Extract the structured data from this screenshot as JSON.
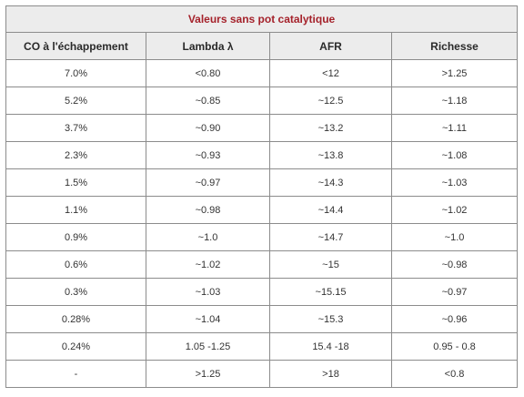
{
  "table": {
    "title": "Valeurs sans pot catalytique",
    "headers": [
      "CO à l'échappement",
      "Lambda λ",
      "AFR",
      "Richesse"
    ],
    "rows": [
      [
        "7.0%",
        "<0.80",
        "<12",
        ">1.25"
      ],
      [
        "5.2%",
        "~0.85",
        "~12.5",
        "~1.18"
      ],
      [
        "3.7%",
        "~0.90",
        "~13.2",
        "~1.11"
      ],
      [
        "2.3%",
        "~0.93",
        "~13.8",
        "~1.08"
      ],
      [
        "1.5%",
        "~0.97",
        "~14.3",
        "~1.03"
      ],
      [
        "1.1%",
        "~0.98",
        "~14.4",
        "~1.02"
      ],
      [
        "0.9%",
        "~1.0",
        "~14.7",
        "~1.0"
      ],
      [
        "0.6%",
        "~1.02",
        "~15",
        "~0.98"
      ],
      [
        "0.3%",
        "~1.03",
        "~15.15",
        "~0.97"
      ],
      [
        "0.28%",
        "~1.04",
        "~15.3",
        "~0.96"
      ],
      [
        "0.24%",
        "1.05 -1.25",
        "15.4 -18",
        "0.95 - 0.8"
      ],
      [
        "-",
        ">1.25",
        ">18",
        "<0.8"
      ]
    ]
  },
  "colors": {
    "title_text": "#a5222b",
    "header_background": "#ececec",
    "border": "#8c8c8c"
  }
}
